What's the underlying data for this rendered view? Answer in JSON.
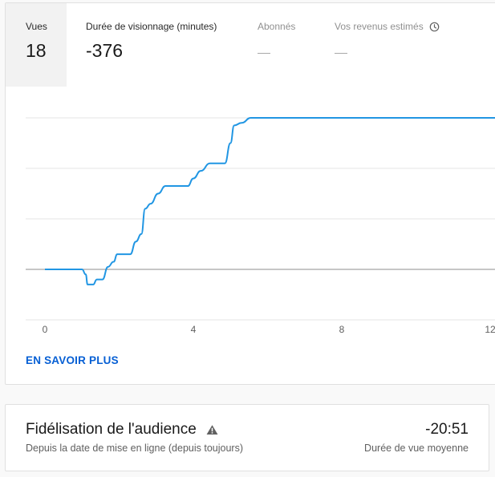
{
  "metrics": [
    {
      "label": "Vues",
      "value": "18",
      "selected": true
    },
    {
      "label": "Durée de visionnage (minutes)",
      "value": "-376",
      "selected": false
    },
    {
      "label": "Abonnés",
      "value": "—",
      "selected": false
    },
    {
      "label": "Vos revenus estimés",
      "value": "—",
      "selected": false,
      "icon": "clock-icon"
    }
  ],
  "chart_data": {
    "type": "line",
    "x_ticks": [
      "0",
      "4",
      "8",
      "12"
    ],
    "xlim": [
      0,
      12
    ],
    "ylim": [
      -1,
      3
    ],
    "grid": true,
    "series": [
      {
        "color": "#2196e3",
        "points": [
          [
            0,
            0
          ],
          [
            1.0,
            0
          ],
          [
            1.1,
            -0.1
          ],
          [
            1.15,
            -0.3
          ],
          [
            1.3,
            -0.3
          ],
          [
            1.4,
            -0.2
          ],
          [
            1.55,
            -0.2
          ],
          [
            1.7,
            0.05
          ],
          [
            1.85,
            0.15
          ],
          [
            1.95,
            0.3
          ],
          [
            2.3,
            0.3
          ],
          [
            2.45,
            0.55
          ],
          [
            2.6,
            0.7
          ],
          [
            2.7,
            1.2
          ],
          [
            2.85,
            1.3
          ],
          [
            3.05,
            1.5
          ],
          [
            3.25,
            1.65
          ],
          [
            3.85,
            1.65
          ],
          [
            4.0,
            1.8
          ],
          [
            4.2,
            1.95
          ],
          [
            4.45,
            2.1
          ],
          [
            4.85,
            2.1
          ],
          [
            5.0,
            2.5
          ],
          [
            5.1,
            2.85
          ],
          [
            5.3,
            2.9
          ],
          [
            5.55,
            3.0
          ],
          [
            12.2,
            3.0
          ]
        ]
      }
    ]
  },
  "learn_more": "EN SAVOIR PLUS",
  "retention": {
    "title": "Fidélisation de l'audience",
    "subtitle": "Depuis la date de mise en ligne (depuis toujours)",
    "value": "-20:51",
    "value_label": "Durée de vue moyenne",
    "icon": "warning-icon"
  }
}
